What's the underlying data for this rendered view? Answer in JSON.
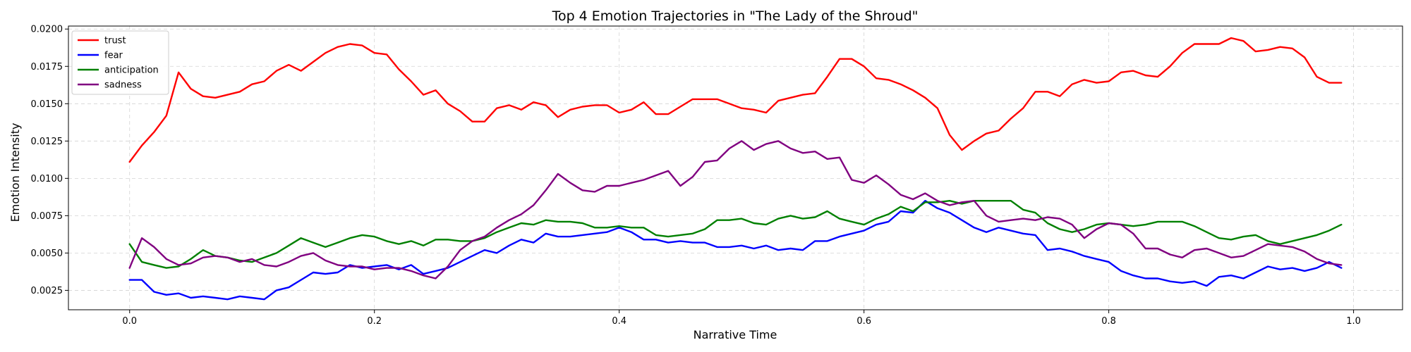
{
  "chart_data": {
    "type": "line",
    "title": "Top 4 Emotion Trajectories in \"The Lady of the Shroud\"",
    "xlabel": "Narrative Time",
    "ylabel": "Emotion Intensity",
    "xlim": [
      -0.05,
      1.04
    ],
    "ylim": [
      0.0012,
      0.0202
    ],
    "xticks": [
      0.0,
      0.2,
      0.4,
      0.6,
      0.8,
      1.0
    ],
    "xtick_labels": [
      "0.0",
      "0.2",
      "0.4",
      "0.6",
      "0.8",
      "1.0"
    ],
    "yticks": [
      0.0025,
      0.005,
      0.0075,
      0.01,
      0.0125,
      0.015,
      0.0175,
      0.02
    ],
    "ytick_labels": [
      "0.0025",
      "0.0050",
      "0.0075",
      "0.0100",
      "0.0125",
      "0.0150",
      "0.0175",
      "0.0200"
    ],
    "grid": true,
    "legend_position": "top-left",
    "x": [
      0.0,
      0.01,
      0.02,
      0.03,
      0.04,
      0.05,
      0.06,
      0.07,
      0.08,
      0.09,
      0.1,
      0.11,
      0.12,
      0.13,
      0.14,
      0.15,
      0.16,
      0.17,
      0.18,
      0.19,
      0.2,
      0.21,
      0.22,
      0.23,
      0.24,
      0.25,
      0.26,
      0.27,
      0.28,
      0.29,
      0.3,
      0.31,
      0.32,
      0.33,
      0.34,
      0.35,
      0.36,
      0.37,
      0.38,
      0.39,
      0.4,
      0.41,
      0.42,
      0.43,
      0.44,
      0.45,
      0.46,
      0.47,
      0.48,
      0.49,
      0.5,
      0.51,
      0.52,
      0.53,
      0.54,
      0.55,
      0.56,
      0.57,
      0.58,
      0.59,
      0.6,
      0.61,
      0.62,
      0.63,
      0.64,
      0.65,
      0.66,
      0.67,
      0.68,
      0.69,
      0.7,
      0.71,
      0.72,
      0.73,
      0.74,
      0.75,
      0.76,
      0.77,
      0.78,
      0.79,
      0.8,
      0.81,
      0.82,
      0.83,
      0.84,
      0.85,
      0.86,
      0.87,
      0.88,
      0.89,
      0.9,
      0.91,
      0.92,
      0.93,
      0.94,
      0.95,
      0.96,
      0.97,
      0.98,
      0.99
    ],
    "series": [
      {
        "name": "trust",
        "color": "#ff0000",
        "values": [
          0.0111,
          0.0122,
          0.0131,
          0.0142,
          0.0171,
          0.016,
          0.0155,
          0.0154,
          0.0156,
          0.0158,
          0.0163,
          0.0165,
          0.0172,
          0.0176,
          0.0172,
          0.0178,
          0.0184,
          0.0188,
          0.019,
          0.0189,
          0.0184,
          0.0183,
          0.0173,
          0.0165,
          0.0156,
          0.0159,
          0.015,
          0.0145,
          0.0138,
          0.0138,
          0.0147,
          0.0149,
          0.0146,
          0.0151,
          0.0149,
          0.0141,
          0.0146,
          0.0148,
          0.0149,
          0.0149,
          0.0144,
          0.0146,
          0.0151,
          0.0143,
          0.0143,
          0.0148,
          0.0153,
          0.0153,
          0.0153,
          0.015,
          0.0147,
          0.0146,
          0.0144,
          0.0152,
          0.0154,
          0.0156,
          0.0157,
          0.0168,
          0.018,
          0.018,
          0.0175,
          0.0167,
          0.0166,
          0.0163,
          0.0159,
          0.0154,
          0.0147,
          0.0129,
          0.0119,
          0.0125,
          0.013,
          0.0132,
          0.014,
          0.0147,
          0.0158,
          0.0158,
          0.0155,
          0.0163,
          0.0166,
          0.0164,
          0.0165,
          0.0171,
          0.0172,
          0.0169,
          0.0168,
          0.0175,
          0.0184,
          0.019,
          0.019,
          0.019,
          0.0194,
          0.0192,
          0.0185,
          0.0186,
          0.0188,
          0.0187,
          0.0181,
          0.0168,
          0.0164,
          0.0164
        ]
      },
      {
        "name": "fear",
        "color": "#0000ff",
        "values": [
          0.0032,
          0.0032,
          0.0024,
          0.0022,
          0.0023,
          0.002,
          0.0021,
          0.002,
          0.0019,
          0.0021,
          0.002,
          0.0019,
          0.0025,
          0.0027,
          0.0032,
          0.0037,
          0.0036,
          0.0037,
          0.0042,
          0.004,
          0.0041,
          0.0042,
          0.0039,
          0.0042,
          0.0036,
          0.0038,
          0.004,
          0.0044,
          0.0048,
          0.0052,
          0.005,
          0.0055,
          0.0059,
          0.0057,
          0.0063,
          0.0061,
          0.0061,
          0.0062,
          0.0063,
          0.0064,
          0.0067,
          0.0064,
          0.0059,
          0.0059,
          0.0057,
          0.0058,
          0.0057,
          0.0057,
          0.0054,
          0.0054,
          0.0055,
          0.0053,
          0.0055,
          0.0052,
          0.0053,
          0.0052,
          0.0058,
          0.0058,
          0.0061,
          0.0063,
          0.0065,
          0.0069,
          0.0071,
          0.0078,
          0.0077,
          0.0085,
          0.008,
          0.0077,
          0.0072,
          0.0067,
          0.0064,
          0.0067,
          0.0065,
          0.0063,
          0.0062,
          0.0052,
          0.0053,
          0.0051,
          0.0048,
          0.0046,
          0.0044,
          0.0038,
          0.0035,
          0.0033,
          0.0033,
          0.0031,
          0.003,
          0.0031,
          0.0028,
          0.0034,
          0.0035,
          0.0033,
          0.0037,
          0.0041,
          0.0039,
          0.004,
          0.0038,
          0.004,
          0.0044,
          0.004
        ]
      },
      {
        "name": "anticipation",
        "color": "#008000",
        "values": [
          0.0056,
          0.0044,
          0.0042,
          0.004,
          0.0041,
          0.0046,
          0.0052,
          0.0048,
          0.0047,
          0.0045,
          0.0044,
          0.0047,
          0.005,
          0.0055,
          0.006,
          0.0057,
          0.0054,
          0.0057,
          0.006,
          0.0062,
          0.0061,
          0.0058,
          0.0056,
          0.0058,
          0.0055,
          0.0059,
          0.0059,
          0.0058,
          0.0058,
          0.006,
          0.0064,
          0.0067,
          0.007,
          0.0069,
          0.0072,
          0.0071,
          0.0071,
          0.007,
          0.0067,
          0.0067,
          0.0068,
          0.0067,
          0.0067,
          0.0062,
          0.0061,
          0.0062,
          0.0063,
          0.0066,
          0.0072,
          0.0072,
          0.0073,
          0.007,
          0.0069,
          0.0073,
          0.0075,
          0.0073,
          0.0074,
          0.0078,
          0.0073,
          0.0071,
          0.0069,
          0.0073,
          0.0076,
          0.0081,
          0.0078,
          0.0084,
          0.0084,
          0.0085,
          0.0083,
          0.0085,
          0.0085,
          0.0085,
          0.0085,
          0.0079,
          0.0077,
          0.007,
          0.0066,
          0.0064,
          0.0066,
          0.0069,
          0.007,
          0.0069,
          0.0068,
          0.0069,
          0.0071,
          0.0071,
          0.0071,
          0.0068,
          0.0064,
          0.006,
          0.0059,
          0.0061,
          0.0062,
          0.0058,
          0.0056,
          0.0058,
          0.006,
          0.0062,
          0.0065,
          0.0069
        ]
      },
      {
        "name": "sadness",
        "color": "#800080",
        "values": [
          0.004,
          0.006,
          0.0054,
          0.0046,
          0.0042,
          0.0043,
          0.0047,
          0.0048,
          0.0047,
          0.0044,
          0.0046,
          0.0042,
          0.0041,
          0.0044,
          0.0048,
          0.005,
          0.0045,
          0.0042,
          0.0041,
          0.0041,
          0.0039,
          0.004,
          0.004,
          0.0038,
          0.0035,
          0.0033,
          0.0041,
          0.0052,
          0.0058,
          0.0061,
          0.0067,
          0.0072,
          0.0076,
          0.0082,
          0.0092,
          0.0103,
          0.0097,
          0.0092,
          0.0091,
          0.0095,
          0.0095,
          0.0097,
          0.0099,
          0.0102,
          0.0105,
          0.0095,
          0.0101,
          0.0111,
          0.0112,
          0.012,
          0.0125,
          0.0119,
          0.0123,
          0.0125,
          0.012,
          0.0117,
          0.0118,
          0.0113,
          0.0114,
          0.0099,
          0.0097,
          0.0102,
          0.0096,
          0.0089,
          0.0086,
          0.009,
          0.0085,
          0.0082,
          0.0084,
          0.0085,
          0.0075,
          0.0071,
          0.0072,
          0.0073,
          0.0072,
          0.0074,
          0.0073,
          0.0069,
          0.006,
          0.0066,
          0.007,
          0.0069,
          0.0063,
          0.0053,
          0.0053,
          0.0049,
          0.0047,
          0.0052,
          0.0053,
          0.005,
          0.0047,
          0.0048,
          0.0052,
          0.0056,
          0.0055,
          0.0054,
          0.0051,
          0.0046,
          0.0043,
          0.0042
        ]
      }
    ]
  }
}
